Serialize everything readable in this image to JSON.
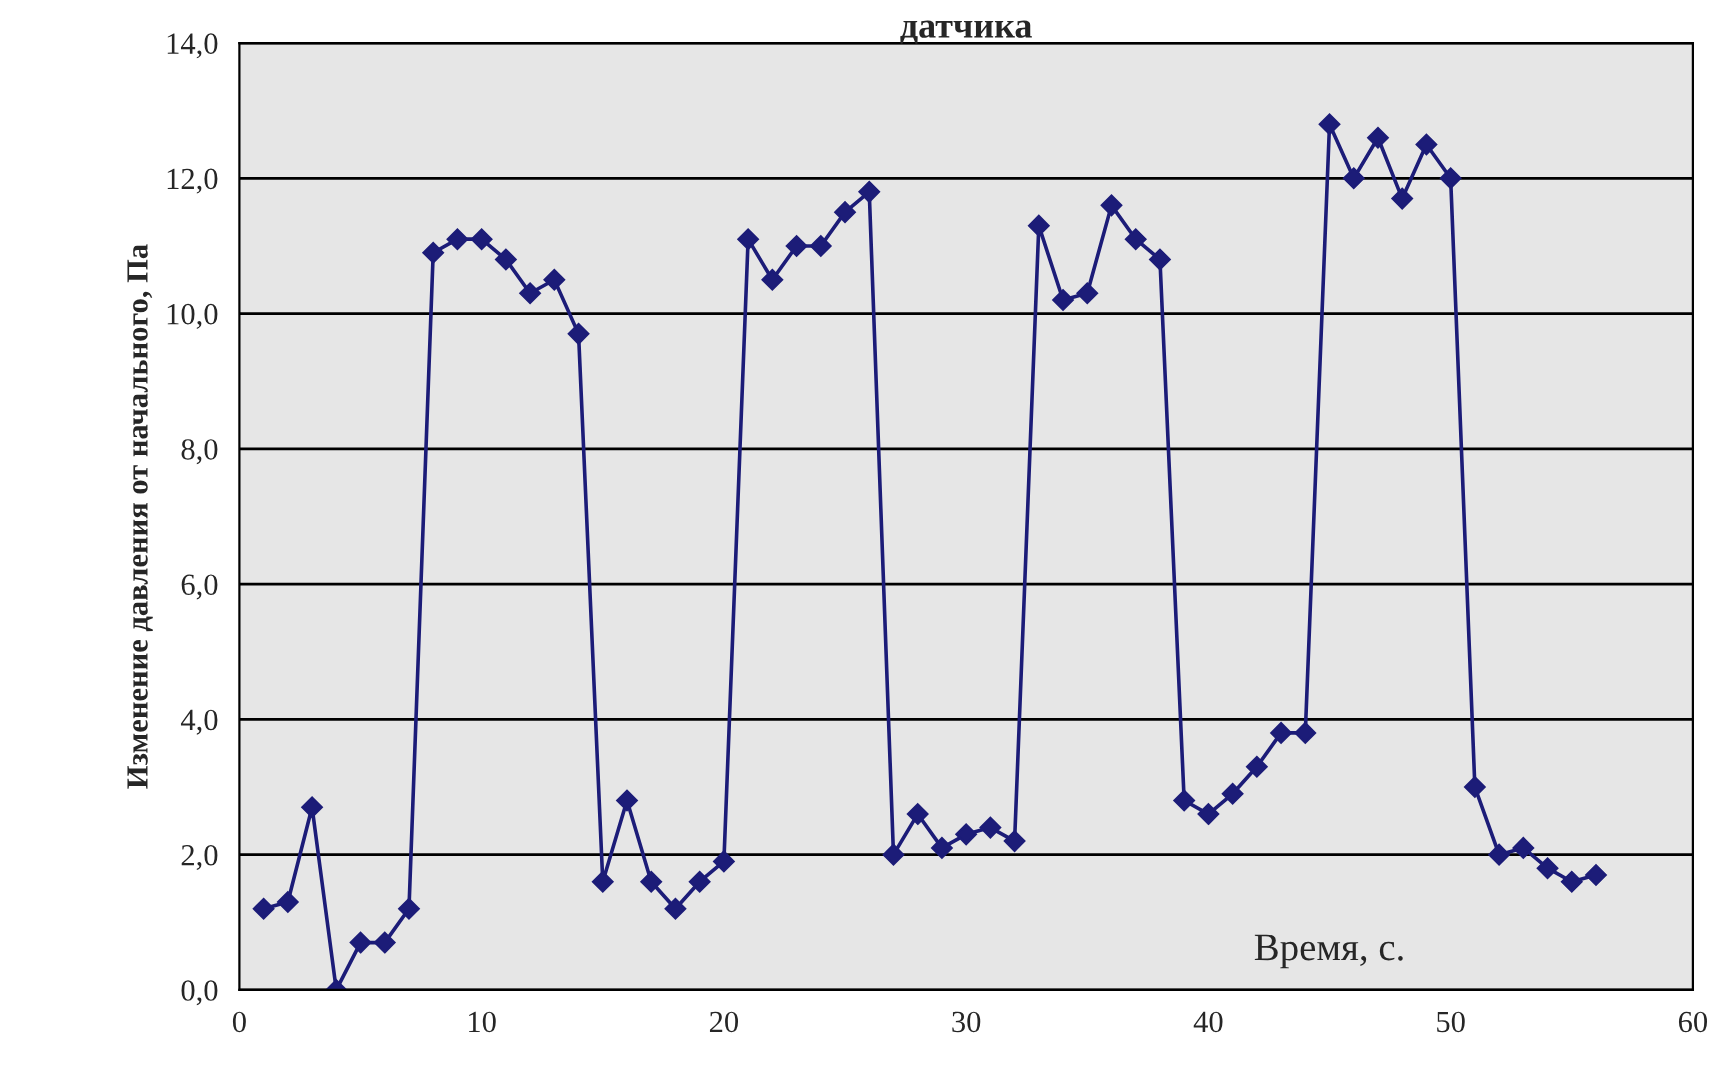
{
  "chart_data": {
    "type": "line",
    "title": "датчика",
    "xlabel": "Время, с.",
    "ylabel": "Изменение давления от начального, Па",
    "x": [
      1,
      2,
      3,
      4,
      5,
      6,
      7,
      8,
      9,
      10,
      11,
      12,
      13,
      14,
      15,
      16,
      17,
      18,
      19,
      20,
      21,
      22,
      23,
      24,
      25,
      26,
      27,
      28,
      29,
      30,
      31,
      32,
      33,
      34,
      35,
      36,
      37,
      38,
      39,
      40,
      41,
      42,
      43,
      44,
      45,
      46,
      47,
      48,
      49,
      50,
      51,
      52,
      53,
      54,
      55,
      56
    ],
    "series": [
      {
        "color": "#1c1c78",
        "values": [
          1.2,
          1.3,
          2.7,
          0.0,
          0.7,
          0.7,
          1.2,
          10.9,
          11.1,
          11.1,
          10.8,
          10.3,
          10.5,
          9.7,
          1.6,
          2.8,
          1.6,
          1.2,
          1.6,
          1.9,
          11.1,
          10.5,
          11.0,
          11.0,
          11.5,
          11.8,
          2.0,
          2.6,
          2.1,
          2.3,
          2.4,
          2.2,
          11.3,
          10.2,
          10.3,
          11.6,
          11.1,
          10.8,
          2.8,
          2.6,
          2.9,
          3.3,
          3.8,
          3.8,
          12.8,
          12.0,
          12.6,
          11.7,
          12.5,
          12.0,
          3.0,
          2.0,
          2.1,
          1.8,
          1.6,
          1.7
        ]
      }
    ],
    "xlim": [
      0,
      60
    ],
    "xticks": [
      0,
      10,
      20,
      30,
      40,
      50,
      60
    ],
    "ylim": [
      0,
      14
    ],
    "yticks": [
      {
        "value": 0,
        "label": "0,0"
      },
      {
        "value": 2,
        "label": "2,0"
      },
      {
        "value": 4,
        "label": "4,0"
      },
      {
        "value": 6,
        "label": "6,0"
      },
      {
        "value": 8,
        "label": "8,0"
      },
      {
        "value": 10,
        "label": "10,0"
      },
      {
        "value": 12,
        "label": "12,0"
      },
      {
        "value": 14,
        "label": "14,0"
      }
    ],
    "grid": "y",
    "marker": "diamond",
    "line_style": "solid"
  }
}
